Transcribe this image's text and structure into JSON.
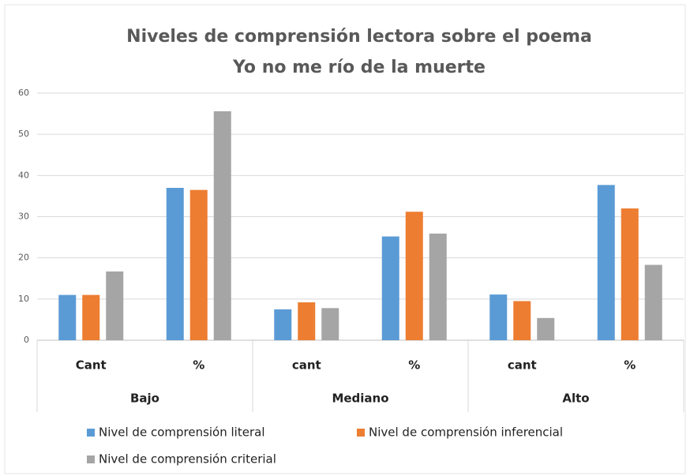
{
  "chart_data": {
    "type": "bar",
    "title": [
      "Niveles de comprensión lectora sobre el poema",
      "Yo no me río de la muerte"
    ],
    "categories": [
      "Cant",
      "%",
      "cant",
      "%",
      "cant",
      "%"
    ],
    "category_groups": [
      "Bajo",
      "Mediano",
      "Alto"
    ],
    "series": [
      {
        "name": "Nivel de comprensión literal",
        "color": "#5b9bd5",
        "values": [
          11,
          37,
          7.5,
          25.2,
          11.1,
          37.7
        ]
      },
      {
        "name": "Nivel de comprensión inferencial",
        "color": "#ed7d31",
        "values": [
          11,
          36.5,
          9.2,
          31.2,
          9.5,
          32
        ]
      },
      {
        "name": "Nivel de comprensión criterial",
        "color": "#a5a5a5",
        "values": [
          16.7,
          55.6,
          7.8,
          25.9,
          5.4,
          18.3
        ]
      }
    ],
    "ylim": [
      0,
      60
    ],
    "yticks": [
      0,
      10,
      20,
      30,
      40,
      50,
      60
    ],
    "grid": true,
    "legend": "bottom"
  }
}
